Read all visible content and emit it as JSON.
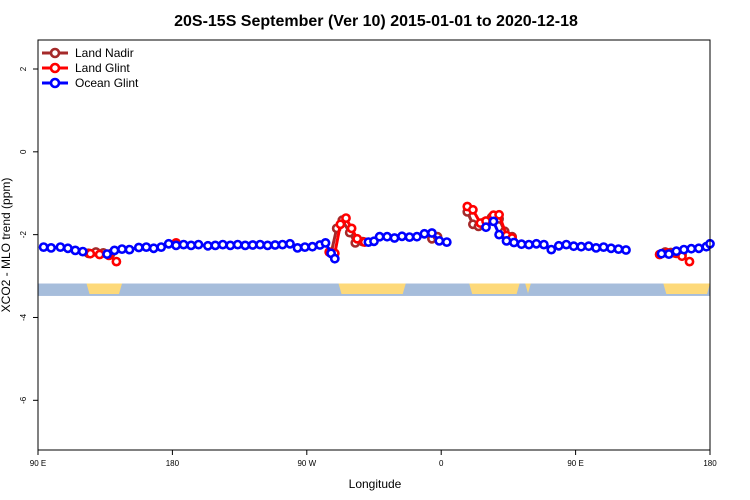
{
  "chart_data": {
    "type": "line",
    "title": "20S-15S September (Ver 10)   2015-01-01 to 2020-12-18",
    "xlabel": "Longitude",
    "ylabel": "XCO2 - MLO trend (ppm)",
    "xlim": [
      90,
      450
    ],
    "ylim": [
      -7.2,
      2.7
    ],
    "x_ticks": [
      {
        "value": 90,
        "label": "90 E"
      },
      {
        "value": 162,
        "label": "180"
      },
      {
        "value": 234,
        "label": "90 W"
      },
      {
        "value": 306,
        "label": "0"
      },
      {
        "value": 378,
        "label": "90 E"
      },
      {
        "value": 450,
        "label": "180"
      }
    ],
    "y_ticks": [
      {
        "value": 2,
        "label": "2"
      },
      {
        "value": 0,
        "label": "0"
      },
      {
        "value": -2,
        "label": "-2"
      },
      {
        "value": -4,
        "label": "-4"
      },
      {
        "value": -6,
        "label": "-6"
      }
    ],
    "legend_position": "top-left",
    "series": [
      {
        "name": "Land Nadir",
        "color": "#a52a2a",
        "points": [
          [
            117,
            -2.45
          ],
          [
            121,
            -2.42
          ],
          [
            125,
            -2.44
          ],
          [
            129,
            -2.46
          ],
          [
            247,
            -2.45
          ],
          [
            250,
            -1.85
          ],
          [
            253,
            -1.65
          ],
          [
            257,
            -1.95
          ],
          [
            260,
            -2.2
          ],
          [
            264,
            -2.17
          ],
          [
            301,
            -2.1
          ],
          [
            304,
            -2.05
          ],
          [
            320,
            -1.45
          ],
          [
            323,
            -1.75
          ],
          [
            326,
            -1.8
          ],
          [
            329,
            -1.7
          ],
          [
            333,
            -1.58
          ],
          [
            337,
            -1.62
          ],
          [
            340,
            -1.92
          ],
          [
            344,
            -2.05
          ],
          [
            426,
            -2.42
          ],
          [
            429,
            -2.43
          ],
          [
            432,
            -2.45
          ],
          [
            435,
            -2.48
          ]
        ]
      },
      {
        "name": "Land Glint",
        "color": "#ff0000",
        "points": [
          [
            118,
            -2.46
          ],
          [
            123,
            -2.48
          ],
          [
            128,
            -2.5
          ],
          [
            132,
            -2.65
          ],
          [
            164,
            -2.2
          ],
          [
            246,
            -2.42
          ],
          [
            249,
            -2.45
          ],
          [
            252,
            -1.75
          ],
          [
            255,
            -1.6
          ],
          [
            258,
            -1.85
          ],
          [
            261,
            -2.1
          ],
          [
            265,
            -2.18
          ],
          [
            320,
            -1.32
          ],
          [
            323,
            -1.4
          ],
          [
            327,
            -1.72
          ],
          [
            330,
            -1.67
          ],
          [
            334,
            -1.53
          ],
          [
            337,
            -1.52
          ],
          [
            341,
            -2.02
          ],
          [
            344,
            -2.08
          ],
          [
            423,
            -2.48
          ],
          [
            427,
            -2.44
          ],
          [
            431,
            -2.44
          ],
          [
            435,
            -2.52
          ],
          [
            439,
            -2.65
          ]
        ]
      },
      {
        "name": "Ocean Glint",
        "color": "#0000ff",
        "points": [
          [
            93,
            -2.3
          ],
          [
            97,
            -2.32
          ],
          [
            102,
            -2.3
          ],
          [
            106,
            -2.33
          ],
          [
            110,
            -2.38
          ],
          [
            114,
            -2.41
          ],
          [
            127,
            -2.47
          ],
          [
            131,
            -2.38
          ],
          [
            135,
            -2.35
          ],
          [
            139,
            -2.36
          ],
          [
            144,
            -2.31
          ],
          [
            148,
            -2.3
          ],
          [
            152,
            -2.33
          ],
          [
            156,
            -2.3
          ],
          [
            160,
            -2.22
          ],
          [
            164,
            -2.26
          ],
          [
            168,
            -2.24
          ],
          [
            172,
            -2.26
          ],
          [
            176,
            -2.24
          ],
          [
            181,
            -2.27
          ],
          [
            185,
            -2.26
          ],
          [
            189,
            -2.24
          ],
          [
            193,
            -2.26
          ],
          [
            197,
            -2.24
          ],
          [
            201,
            -2.26
          ],
          [
            205,
            -2.25
          ],
          [
            209,
            -2.24
          ],
          [
            213,
            -2.26
          ],
          [
            217,
            -2.25
          ],
          [
            221,
            -2.24
          ],
          [
            225,
            -2.22
          ],
          [
            229,
            -2.32
          ],
          [
            233,
            -2.3
          ],
          [
            237,
            -2.29
          ],
          [
            241,
            -2.25
          ],
          [
            244,
            -2.2
          ],
          [
            247,
            -2.45
          ],
          [
            249,
            -2.58
          ],
          [
            267,
            -2.18
          ],
          [
            270,
            -2.16
          ],
          [
            273,
            -2.05
          ],
          [
            277,
            -2.05
          ],
          [
            281,
            -2.08
          ],
          [
            285,
            -2.04
          ],
          [
            289,
            -2.06
          ],
          [
            293,
            -2.05
          ],
          [
            297,
            -1.98
          ],
          [
            301,
            -1.96
          ],
          [
            305,
            -2.15
          ],
          [
            309,
            -2.18
          ],
          [
            330,
            -1.82
          ],
          [
            334,
            -1.68
          ],
          [
            337,
            -2.0
          ],
          [
            341,
            -2.15
          ],
          [
            345,
            -2.19
          ],
          [
            349,
            -2.23
          ],
          [
            353,
            -2.24
          ],
          [
            357,
            -2.22
          ],
          [
            361,
            -2.24
          ],
          [
            365,
            -2.36
          ],
          [
            369,
            -2.27
          ],
          [
            373,
            -2.24
          ],
          [
            377,
            -2.28
          ],
          [
            381,
            -2.29
          ],
          [
            385,
            -2.28
          ],
          [
            389,
            -2.32
          ],
          [
            393,
            -2.3
          ],
          [
            397,
            -2.33
          ],
          [
            401,
            -2.35
          ],
          [
            405,
            -2.37
          ],
          [
            424,
            -2.46
          ],
          [
            428,
            -2.47
          ],
          [
            432,
            -2.4
          ],
          [
            436,
            -2.36
          ],
          [
            440,
            -2.34
          ],
          [
            444,
            -2.33
          ],
          [
            448,
            -2.29
          ],
          [
            450,
            -2.22
          ]
        ]
      }
    ],
    "land_ocean_bar": {
      "y_top": -3.18,
      "y_bottom": -3.48,
      "ocean_color": "#a6bddb",
      "land_color": "#fdd97a",
      "land_segments": [
        [
          116,
          135
        ],
        [
          251,
          287
        ],
        [
          321,
          348
        ],
        [
          351,
          354
        ],
        [
          425,
          450
        ]
      ]
    }
  }
}
